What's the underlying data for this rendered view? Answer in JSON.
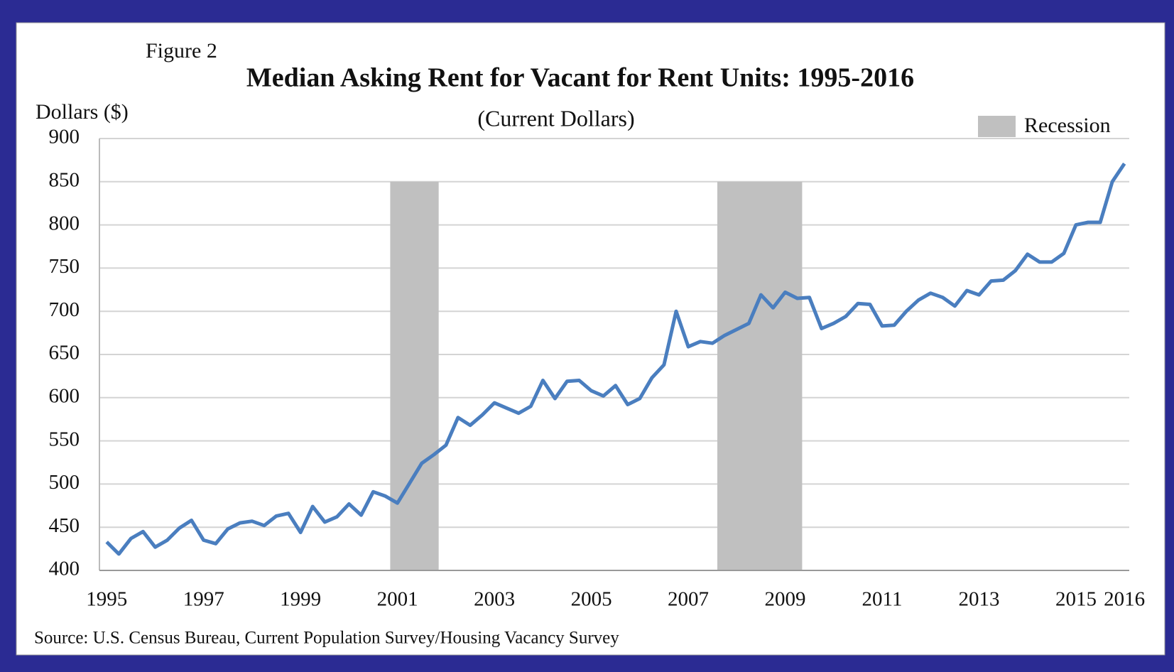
{
  "chart_data": {
    "type": "line",
    "annotation": "Figure 2",
    "title": "Median Asking Rent for Vacant for Rent Units: 1995-2016",
    "subtitle": "(Current Dollars)",
    "y_label": "Dollars ($)",
    "source": "Source: U.S. Census Bureau, Current Population Survey/Housing Vacancy Survey",
    "x": [
      1995,
      1995.25,
      1995.5,
      1995.75,
      1996,
      1996.25,
      1996.5,
      1996.75,
      1997,
      1997.25,
      1997.5,
      1997.75,
      1998,
      1998.25,
      1998.5,
      1998.75,
      1999,
      1999.25,
      1999.5,
      1999.75,
      2000,
      2000.25,
      2000.5,
      2000.75,
      2001,
      2001.25,
      2001.5,
      2001.75,
      2002,
      2002.25,
      2002.5,
      2002.75,
      2003,
      2003.25,
      2003.5,
      2003.75,
      2004,
      2004.25,
      2004.5,
      2004.75,
      2005,
      2005.25,
      2005.5,
      2005.75,
      2006,
      2006.25,
      2006.5,
      2006.75,
      2007,
      2007.25,
      2007.5,
      2007.75,
      2008,
      2008.25,
      2008.5,
      2008.75,
      2009,
      2009.25,
      2009.5,
      2009.75,
      2010,
      2010.25,
      2010.5,
      2010.75,
      2011,
      2011.25,
      2011.5,
      2011.75,
      2012,
      2012.25,
      2012.5,
      2012.75,
      2013,
      2013.25,
      2013.5,
      2013.75,
      2014,
      2014.25,
      2014.5,
      2014.75,
      2015,
      2015.25,
      2015.5,
      2015.75,
      2016
    ],
    "series": [
      {
        "name": "Median asking rent",
        "color": "#4a7ebf",
        "values": [
          433,
          419,
          437,
          445,
          427,
          435,
          449,
          458,
          435,
          431,
          448,
          455,
          457,
          452,
          463,
          466,
          444,
          474,
          456,
          462,
          477,
          464,
          491,
          486,
          478,
          501,
          524,
          534,
          545,
          577,
          568,
          580,
          594,
          588,
          582,
          590,
          620,
          599,
          619,
          620,
          608,
          602,
          614,
          592,
          599,
          623,
          638,
          700,
          659,
          665,
          663,
          672,
          679,
          686,
          719,
          704,
          722,
          715,
          716,
          680,
          686,
          694,
          709,
          708,
          683,
          684,
          700,
          713,
          721,
          716,
          706,
          724,
          719,
          735,
          736,
          747,
          766,
          757,
          757,
          767,
          800,
          803,
          803,
          850,
          871
        ]
      }
    ],
    "recessions": {
      "name": "Recession",
      "color": "#c0c0c0",
      "top": 850,
      "periods": [
        [
          2000.85,
          2001.85
        ],
        [
          2007.6,
          2009.35
        ]
      ]
    },
    "xlim": [
      1994.85,
      2016.1
    ],
    "xticks": [
      1995,
      1997,
      1999,
      2001,
      2003,
      2005,
      2007,
      2009,
      2011,
      2013,
      2015,
      2016
    ],
    "ylim": [
      400,
      900
    ],
    "yticks": [
      400,
      450,
      500,
      550,
      600,
      650,
      700,
      750,
      800,
      850,
      900
    ],
    "grid": true,
    "legend": "top-right"
  }
}
